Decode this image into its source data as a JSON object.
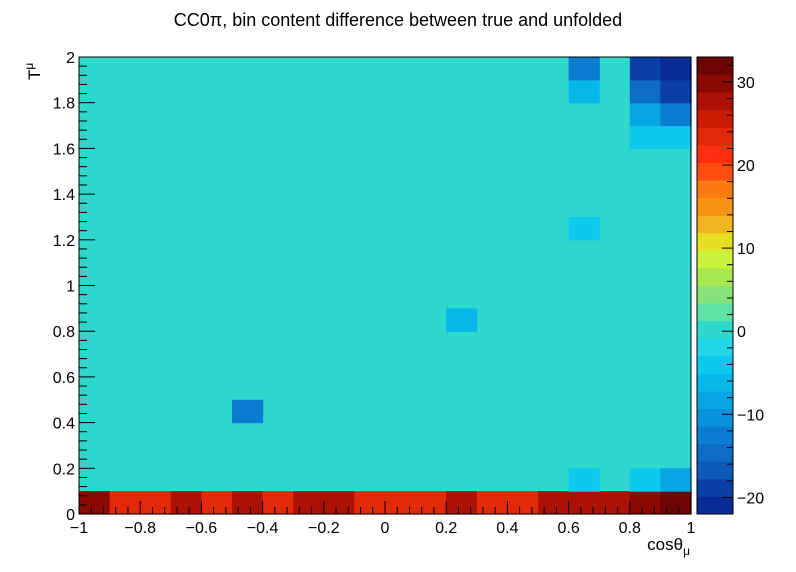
{
  "chart_data": {
    "type": "heatmap",
    "title": "CC0π, bin content difference between true and unfolded",
    "xlabel": "cosθ",
    "xlabel_sub": "μ",
    "ylabel": "T",
    "ylabel_sub": "μ",
    "x_edges": [
      -1.0,
      -0.9,
      -0.8,
      -0.7,
      -0.6,
      -0.5,
      -0.4,
      -0.3,
      -0.2,
      -0.1,
      0.0,
      0.1,
      0.2,
      0.3,
      0.4,
      0.5,
      0.6,
      0.7,
      0.8,
      0.9,
      1.0
    ],
    "y_edges": [
      0.0,
      0.1,
      0.2,
      0.3,
      0.4,
      0.5,
      0.6,
      0.7,
      0.8,
      0.9,
      1.0,
      1.1,
      1.2,
      1.3,
      1.4,
      1.5,
      1.6,
      1.7,
      1.8,
      1.9,
      2.0
    ],
    "xlim": [
      -1,
      1
    ],
    "ylim": [
      0,
      2
    ],
    "zlim": [
      -22,
      33
    ],
    "x_ticks": [
      -1,
      -0.8,
      -0.6,
      -0.4,
      -0.2,
      0,
      0.2,
      0.4,
      0.6,
      0.8,
      1
    ],
    "x_tick_labels": [
      "−1",
      "−0.8",
      "−0.6",
      "−0.4",
      "−0.2",
      "0",
      "0.2",
      "0.4",
      "0.6",
      "0.8",
      "1"
    ],
    "y_ticks": [
      0,
      0.2,
      0.4,
      0.6,
      0.8,
      1,
      1.2,
      1.4,
      1.6,
      1.8,
      2
    ],
    "y_tick_labels": [
      "0",
      "0.2",
      "0.4",
      "0.6",
      "0.8",
      "1",
      "1.2",
      "1.4",
      "1.6",
      "1.8",
      "2"
    ],
    "z_ticks": [
      -20,
      -10,
      0,
      10,
      20,
      30
    ],
    "z_tick_labels": [
      "−20",
      "−10",
      "0",
      "10",
      "20",
      "30"
    ],
    "background_value": 0,
    "palette": [
      "#0a2a96",
      "#0b3fa8",
      "#0d5ab9",
      "#0e6cc4",
      "#0a7dd2",
      "#0892dc",
      "#06a6e4",
      "#06b8ea",
      "#0dc9ee",
      "#22d6ea",
      "#2fd8cd",
      "#5fe2a6",
      "#85e37a",
      "#a7e84f",
      "#cbf23a",
      "#e6df24",
      "#efb61f",
      "#f79414",
      "#fb7a12",
      "#ff4d10",
      "#fe2e0e",
      "#e22a0a",
      "#ca1c05",
      "#ab1104",
      "#8a0a03",
      "#6b0402"
    ],
    "cells": [
      {
        "x": -0.95,
        "y": 0.05,
        "z": 29
      },
      {
        "x": -0.85,
        "y": 0.05,
        "z": 23
      },
      {
        "x": -0.75,
        "y": 0.05,
        "z": 23
      },
      {
        "x": -0.65,
        "y": 0.05,
        "z": 27
      },
      {
        "x": -0.55,
        "y": 0.05,
        "z": 23
      },
      {
        "x": -0.45,
        "y": 0.05,
        "z": 28
      },
      {
        "x": -0.35,
        "y": 0.05,
        "z": 23
      },
      {
        "x": -0.25,
        "y": 0.05,
        "z": 27
      },
      {
        "x": -0.15,
        "y": 0.05,
        "z": 27
      },
      {
        "x": -0.05,
        "y": 0.05,
        "z": 23
      },
      {
        "x": 0.05,
        "y": 0.05,
        "z": 23
      },
      {
        "x": 0.15,
        "y": 0.05,
        "z": 23
      },
      {
        "x": 0.25,
        "y": 0.05,
        "z": 28
      },
      {
        "x": 0.35,
        "y": 0.05,
        "z": 23
      },
      {
        "x": 0.45,
        "y": 0.05,
        "z": 23
      },
      {
        "x": 0.55,
        "y": 0.05,
        "z": 27
      },
      {
        "x": 0.65,
        "y": 0.05,
        "z": 27
      },
      {
        "x": 0.75,
        "y": 0.05,
        "z": 27
      },
      {
        "x": 0.85,
        "y": 0.05,
        "z": 30
      },
      {
        "x": 0.95,
        "y": 0.05,
        "z": 32
      },
      {
        "x": 0.65,
        "y": 0.15,
        "z": -5
      },
      {
        "x": 0.85,
        "y": 0.15,
        "z": -5
      },
      {
        "x": 0.95,
        "y": 0.15,
        "z": -8
      },
      {
        "x": -0.45,
        "y": 0.45,
        "z": -13
      },
      {
        "x": 0.25,
        "y": 0.85,
        "z": -7
      },
      {
        "x": 0.65,
        "y": 1.25,
        "z": -5
      },
      {
        "x": 0.85,
        "y": 1.65,
        "z": -4
      },
      {
        "x": 0.95,
        "y": 1.65,
        "z": -4
      },
      {
        "x": 0.85,
        "y": 1.75,
        "z": -9
      },
      {
        "x": 0.95,
        "y": 1.75,
        "z": -12
      },
      {
        "x": 0.65,
        "y": 1.85,
        "z": -6
      },
      {
        "x": 0.85,
        "y": 1.85,
        "z": -15
      },
      {
        "x": 0.95,
        "y": 1.85,
        "z": -18
      },
      {
        "x": 0.65,
        "y": 1.95,
        "z": -12
      },
      {
        "x": 0.85,
        "y": 1.95,
        "z": -18
      },
      {
        "x": 0.95,
        "y": 1.95,
        "z": -21
      }
    ]
  }
}
